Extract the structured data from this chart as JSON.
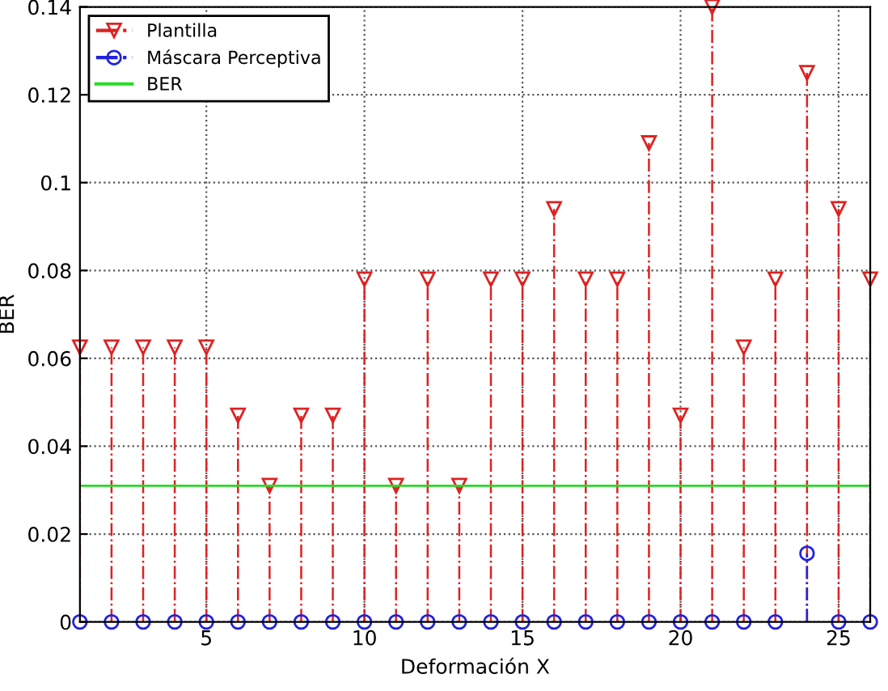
{
  "chart_data": {
    "type": "lollipop",
    "xlabel": "Deformación X",
    "ylabel": "BER",
    "x": [
      1,
      2,
      3,
      4,
      5,
      6,
      7,
      8,
      9,
      10,
      11,
      12,
      13,
      14,
      15,
      16,
      17,
      18,
      19,
      20,
      21,
      22,
      23,
      24,
      25,
      26
    ],
    "series": [
      {
        "name": "Plantilla",
        "color": "#dd2222",
        "marker": "triangle",
        "line_style": "dashed",
        "values": [
          0.0625,
          0.0625,
          0.0625,
          0.0625,
          0.0625,
          0.047,
          0.031,
          0.047,
          0.047,
          0.078,
          0.031,
          0.078,
          0.031,
          0.078,
          0.078,
          0.094,
          0.078,
          0.078,
          0.109,
          0.047,
          0.14,
          0.0625,
          0.078,
          0.125,
          0.094,
          0.078
        ]
      },
      {
        "name": "Máscara Perceptiva",
        "color": "#2222dd",
        "marker": "circle",
        "line_style": "dashed",
        "values": [
          0,
          0,
          0,
          0,
          0,
          0,
          0,
          0,
          0,
          0,
          0,
          0,
          0,
          0,
          0,
          0,
          0,
          0,
          0,
          0,
          0,
          0,
          0,
          0.0156,
          0,
          0
        ]
      }
    ],
    "ref_lines": [
      {
        "axis": "y",
        "value": 0.031,
        "label": "BER",
        "color": "#22dd22"
      }
    ],
    "xlim": [
      1,
      26
    ],
    "xticks": [
      5,
      10,
      15,
      20,
      25
    ],
    "ylim": [
      0,
      0.14
    ],
    "yticks": [
      0,
      0.02,
      0.04,
      0.06,
      0.08,
      0.1,
      0.12,
      0.14
    ],
    "grid": true,
    "legend": "top left"
  }
}
